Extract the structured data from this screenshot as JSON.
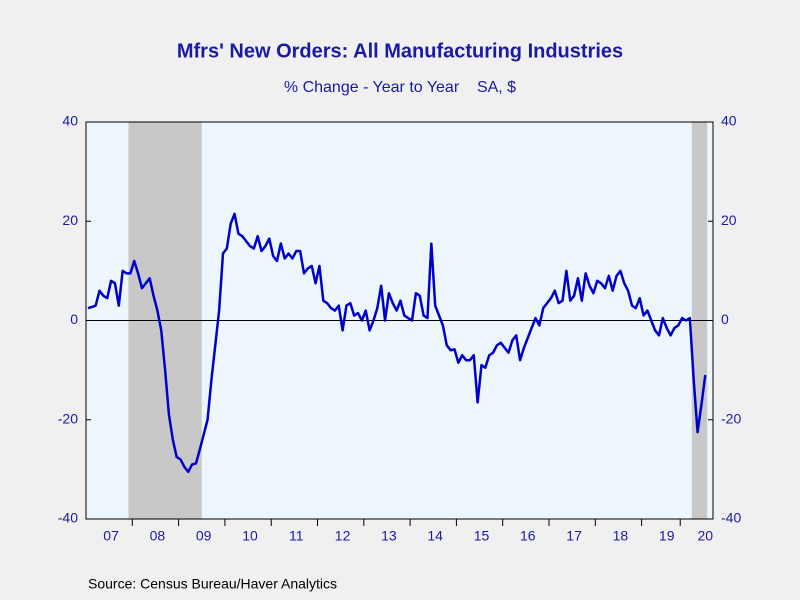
{
  "chart_data": {
    "type": "line",
    "title": "Mfrs' New Orders: All Manufacturing Industries",
    "subtitle": "% Change - Year to Year    SA, $",
    "source": "Source:  Census Bureau/Haver Analytics",
    "categories": [
      null,
      null,
      null,
      null,
      null,
      null,
      "07",
      null,
      null,
      null,
      null,
      null,
      null,
      null,
      null,
      null,
      null,
      null,
      "08",
      null,
      null,
      null,
      null,
      null,
      null,
      null,
      null,
      null,
      null,
      null,
      "09",
      null,
      null,
      null,
      null,
      null,
      null,
      null,
      null,
      null,
      null,
      null,
      "10",
      null,
      null,
      null,
      null,
      null,
      null,
      null,
      null,
      null,
      null,
      null,
      "11",
      null,
      null,
      null,
      null,
      null,
      null,
      null,
      null,
      null,
      null,
      null,
      "12",
      null,
      null,
      null,
      null,
      null,
      null,
      null,
      null,
      null,
      null,
      null,
      "13",
      null,
      null,
      null,
      null,
      null,
      null,
      null,
      null,
      null,
      null,
      null,
      "14",
      null,
      null,
      null,
      null,
      null,
      null,
      null,
      null,
      null,
      null,
      null,
      "15",
      null,
      null,
      null,
      null,
      null,
      null,
      null,
      null,
      null,
      null,
      null,
      "16",
      null,
      null,
      null,
      null,
      null,
      null,
      null,
      null,
      null,
      null,
      null,
      "17",
      null,
      null,
      null,
      null,
      null,
      null,
      null,
      null,
      null,
      null,
      null,
      "18",
      null,
      null,
      null,
      null,
      null,
      null,
      null,
      null,
      null,
      null,
      null,
      "19",
      null,
      null,
      null,
      null,
      null,
      null,
      null,
      null,
      null,
      "20"
    ],
    "series": [
      {
        "name": "Mfrs' New Orders",
        "color": "#0000cc",
        "values": [
          2.5,
          2.7,
          3,
          6,
          5,
          4.5,
          8,
          7.5,
          3,
          10,
          9.5,
          9.5,
          12,
          9.5,
          6.5,
          7.5,
          8.5,
          5,
          2,
          -2,
          -10,
          -19,
          -24,
          -27.5,
          -28,
          -29.5,
          -30.5,
          -29,
          -28.8,
          -26,
          -23,
          -20,
          -12,
          -5,
          2,
          13.5,
          14.5,
          19.5,
          21.5,
          17.5,
          17,
          16,
          15,
          14.5,
          17,
          14,
          15,
          16.5,
          13,
          12,
          15.5,
          12.5,
          13.5,
          12.5,
          14,
          14,
          9.5,
          10.5,
          11,
          7.5,
          11,
          4,
          3.5,
          2.5,
          2,
          3,
          -2,
          3,
          3.5,
          1,
          1.5,
          0,
          2,
          -2,
          0,
          2.5,
          7,
          0,
          5.5,
          3.5,
          2,
          4,
          1,
          0.5,
          0,
          5.5,
          5,
          1,
          0.5,
          15.5,
          3,
          1,
          -1,
          -5,
          -6,
          -5.8,
          -8.5,
          -7,
          -8,
          -8,
          -7,
          -16.5,
          -9,
          -9.5,
          -7,
          -6.5,
          -5,
          -4.5,
          -5.5,
          -6.5,
          -4,
          -3,
          -8,
          -5.5,
          -3.5,
          -1.5,
          0.5,
          -1,
          2.5,
          3.5,
          4.5,
          6,
          3.5,
          4,
          10,
          4,
          5,
          8.5,
          4,
          9.5,
          7,
          5.5,
          8,
          7.5,
          6.5,
          9,
          6,
          9,
          10,
          7.5,
          6,
          3,
          2.5,
          4.5,
          1,
          2,
          0,
          -2,
          -3,
          0.5,
          -1.5,
          -3,
          -1.5,
          -1,
          0.5,
          0,
          0.5,
          -12,
          -22.5,
          -17,
          -11
        ]
      }
    ],
    "recessions": [
      {
        "start": 11,
        "end": 29
      },
      {
        "start": 157,
        "end": 160
      }
    ],
    "recession_color": "#c8c8c8",
    "ylim": [
      -40,
      40
    ],
    "yticks": [
      40,
      20,
      0,
      -20,
      -40
    ]
  }
}
